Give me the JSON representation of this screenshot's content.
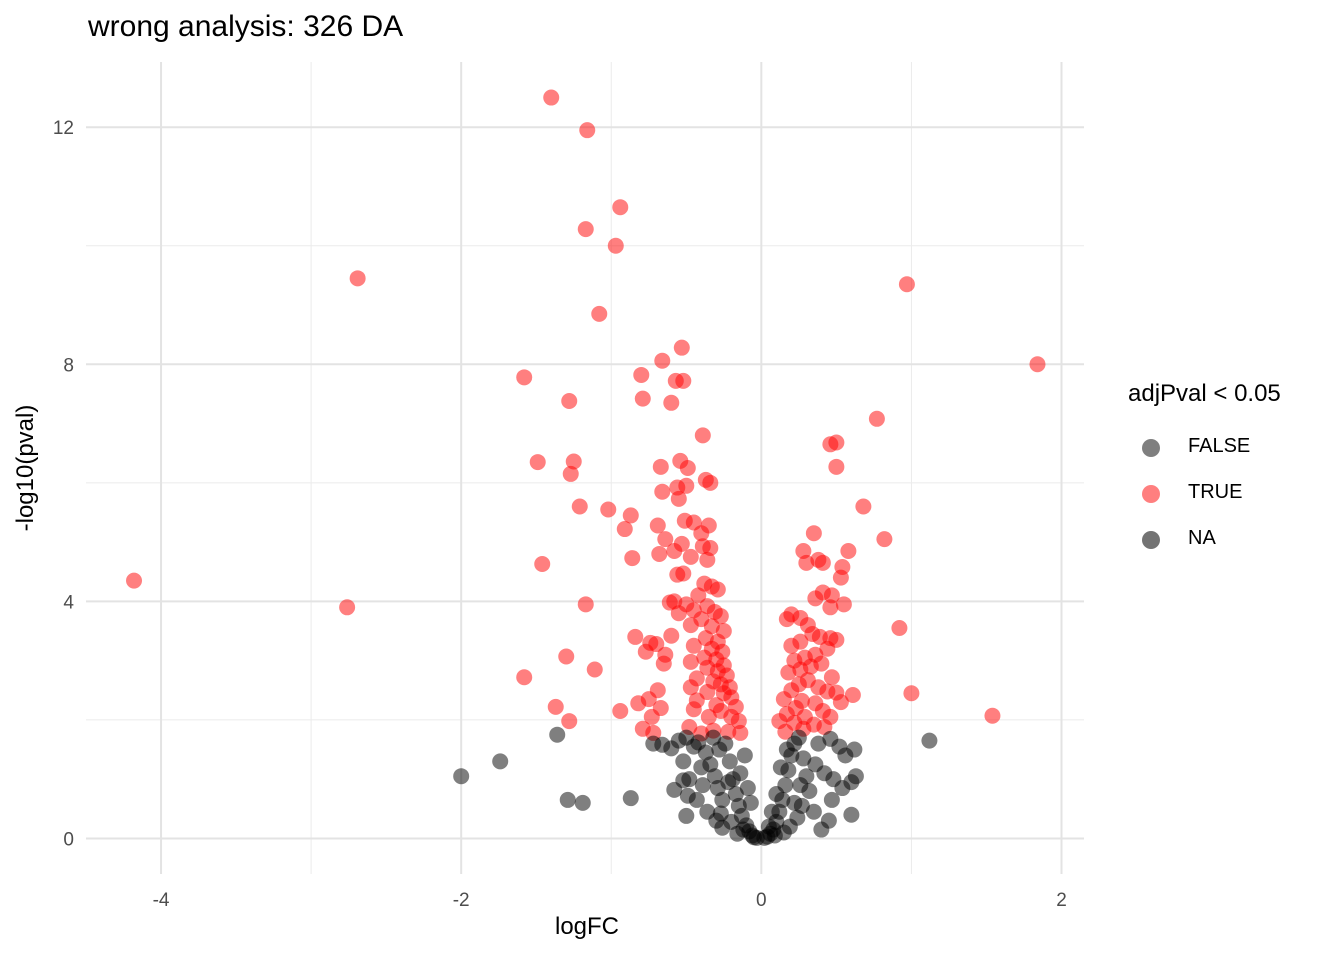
{
  "chart_data": {
    "type": "scatter",
    "title": "wrong analysis: 326 DA",
    "xlabel": "logFC",
    "ylabel": "-log10(pval)",
    "xlim": [
      -4.5,
      2.15
    ],
    "ylim": [
      -0.6,
      13.1
    ],
    "x_ticks": [
      -4,
      -2,
      0,
      2
    ],
    "y_ticks": [
      0,
      4,
      8,
      12
    ],
    "grid": true,
    "legend": {
      "title": "adjPval < 0.05",
      "placement": "right",
      "entries": [
        {
          "label": "FALSE",
          "color": "#000000"
        },
        {
          "label": "TRUE",
          "color": "#ff0000"
        },
        {
          "label": "NA",
          "color": "#000000"
        }
      ]
    },
    "series": [
      {
        "name": "TRUE",
        "color": "#ff0000",
        "points": [
          [
            -1.4,
            12.5
          ],
          [
            -1.16,
            11.95
          ],
          [
            -0.94,
            10.65
          ],
          [
            -1.17,
            10.28
          ],
          [
            -0.97,
            10.0
          ],
          [
            -2.69,
            9.45
          ],
          [
            -1.08,
            8.85
          ],
          [
            -0.53,
            8.28
          ],
          [
            -0.66,
            8.06
          ],
          [
            -1.58,
            7.78
          ],
          [
            -0.8,
            7.82
          ],
          [
            -0.57,
            7.72
          ],
          [
            -0.52,
            7.72
          ],
          [
            -1.28,
            7.38
          ],
          [
            -0.79,
            7.42
          ],
          [
            -0.6,
            7.35
          ],
          [
            -0.39,
            6.8
          ],
          [
            -1.49,
            6.35
          ],
          [
            -1.25,
            6.36
          ],
          [
            -0.54,
            6.37
          ],
          [
            -0.67,
            6.27
          ],
          [
            -0.49,
            6.25
          ],
          [
            -1.27,
            6.15
          ],
          [
            -0.37,
            6.05
          ],
          [
            -0.34,
            6.0
          ],
          [
            -0.56,
            5.92
          ],
          [
            -0.5,
            5.95
          ],
          [
            -0.66,
            5.85
          ],
          [
            -0.55,
            5.73
          ],
          [
            -1.21,
            5.6
          ],
          [
            -1.02,
            5.55
          ],
          [
            -0.87,
            5.45
          ],
          [
            -0.51,
            5.36
          ],
          [
            -0.45,
            5.33
          ],
          [
            -0.35,
            5.28
          ],
          [
            -0.69,
            5.28
          ],
          [
            -0.91,
            5.22
          ],
          [
            -0.4,
            5.15
          ],
          [
            -0.64,
            5.05
          ],
          [
            -0.53,
            4.97
          ],
          [
            -0.39,
            4.93
          ],
          [
            -0.34,
            4.9
          ],
          [
            -0.58,
            4.85
          ],
          [
            -0.68,
            4.8
          ],
          [
            -0.86,
            4.73
          ],
          [
            -0.47,
            4.75
          ],
          [
            -0.36,
            4.7
          ],
          [
            -1.46,
            4.63
          ],
          [
            -0.56,
            4.45
          ],
          [
            -0.52,
            4.47
          ],
          [
            -0.38,
            4.3
          ],
          [
            -0.33,
            4.25
          ],
          [
            -0.29,
            4.2
          ],
          [
            -0.42,
            4.1
          ],
          [
            -0.61,
            3.98
          ],
          [
            -0.58,
            4.0
          ],
          [
            -0.5,
            3.95
          ],
          [
            -0.36,
            3.92
          ],
          [
            -1.17,
            3.95
          ],
          [
            -0.45,
            3.85
          ],
          [
            -0.31,
            3.82
          ],
          [
            -0.27,
            3.75
          ],
          [
            -0.55,
            3.8
          ],
          [
            -0.4,
            3.7
          ],
          [
            -0.47,
            3.6
          ],
          [
            -0.33,
            3.58
          ],
          [
            -0.25,
            3.5
          ],
          [
            -0.6,
            3.42
          ],
          [
            -0.84,
            3.4
          ],
          [
            -0.37,
            3.38
          ],
          [
            -0.29,
            3.32
          ],
          [
            -0.74,
            3.3
          ],
          [
            -0.7,
            3.28
          ],
          [
            -0.45,
            3.25
          ],
          [
            -0.33,
            3.2
          ],
          [
            -0.77,
            3.15
          ],
          [
            -0.26,
            3.15
          ],
          [
            -0.64,
            3.1
          ],
          [
            -1.3,
            3.07
          ],
          [
            -0.38,
            3.05
          ],
          [
            -0.3,
            3.02
          ],
          [
            -0.65,
            2.95
          ],
          [
            -0.47,
            2.98
          ],
          [
            -0.25,
            2.92
          ],
          [
            -0.36,
            2.88
          ],
          [
            -1.11,
            2.85
          ],
          [
            -0.29,
            2.82
          ],
          [
            -0.23,
            2.75
          ],
          [
            -1.58,
            2.72
          ],
          [
            -0.43,
            2.7
          ],
          [
            -0.32,
            2.65
          ],
          [
            -0.27,
            2.6
          ],
          [
            -0.47,
            2.55
          ],
          [
            -0.21,
            2.55
          ],
          [
            -0.69,
            2.5
          ],
          [
            -0.36,
            2.47
          ],
          [
            -0.25,
            2.45
          ],
          [
            -0.2,
            2.38
          ],
          [
            -0.75,
            2.35
          ],
          [
            -0.43,
            2.33
          ],
          [
            -0.82,
            2.28
          ],
          [
            -0.3,
            2.25
          ],
          [
            -1.37,
            2.22
          ],
          [
            -0.17,
            2.22
          ],
          [
            -0.67,
            2.2
          ],
          [
            -0.94,
            2.15
          ],
          [
            -0.45,
            2.18
          ],
          [
            -0.27,
            2.15
          ],
          [
            -0.73,
            2.05
          ],
          [
            -0.35,
            2.05
          ],
          [
            -0.2,
            2.05
          ],
          [
            -1.28,
            1.98
          ],
          [
            -0.15,
            1.98
          ],
          [
            -0.79,
            1.85
          ],
          [
            -0.48,
            1.88
          ],
          [
            -0.32,
            1.82
          ],
          [
            -0.22,
            1.8
          ],
          [
            -0.72,
            1.78
          ],
          [
            -0.14,
            1.78
          ],
          [
            -0.4,
            1.77
          ],
          [
            0.97,
            9.35
          ],
          [
            1.84,
            8.0
          ],
          [
            0.77,
            7.08
          ],
          [
            0.5,
            6.68
          ],
          [
            0.46,
            6.65
          ],
          [
            0.5,
            6.27
          ],
          [
            0.68,
            5.6
          ],
          [
            0.35,
            5.15
          ],
          [
            0.82,
            5.05
          ],
          [
            0.28,
            4.85
          ],
          [
            0.58,
            4.85
          ],
          [
            0.38,
            4.7
          ],
          [
            0.41,
            4.65
          ],
          [
            0.3,
            4.65
          ],
          [
            0.54,
            4.58
          ],
          [
            0.53,
            4.4
          ],
          [
            0.41,
            4.15
          ],
          [
            0.47,
            4.1
          ],
          [
            0.36,
            4.05
          ],
          [
            0.55,
            3.95
          ],
          [
            0.46,
            3.9
          ],
          [
            0.2,
            3.78
          ],
          [
            0.26,
            3.72
          ],
          [
            0.17,
            3.7
          ],
          [
            0.31,
            3.6
          ],
          [
            0.92,
            3.55
          ],
          [
            0.34,
            3.45
          ],
          [
            0.39,
            3.4
          ],
          [
            0.5,
            3.35
          ],
          [
            0.46,
            3.38
          ],
          [
            0.26,
            3.32
          ],
          [
            0.2,
            3.25
          ],
          [
            0.44,
            3.2
          ],
          [
            0.36,
            3.1
          ],
          [
            0.29,
            3.05
          ],
          [
            0.22,
            3.0
          ],
          [
            0.4,
            2.95
          ],
          [
            0.33,
            2.9
          ],
          [
            0.26,
            2.85
          ],
          [
            0.18,
            2.8
          ],
          [
            0.47,
            2.72
          ],
          [
            0.31,
            2.67
          ],
          [
            0.25,
            2.6
          ],
          [
            0.38,
            2.55
          ],
          [
            0.2,
            2.5
          ],
          [
            0.44,
            2.48
          ],
          [
            0.5,
            2.46
          ],
          [
            0.61,
            2.42
          ],
          [
            1.0,
            2.45
          ],
          [
            0.15,
            2.35
          ],
          [
            0.27,
            2.32
          ],
          [
            0.36,
            2.28
          ],
          [
            0.53,
            2.3
          ],
          [
            0.23,
            2.2
          ],
          [
            0.41,
            2.15
          ],
          [
            0.17,
            2.1
          ],
          [
            0.29,
            2.05
          ],
          [
            0.46,
            2.05
          ],
          [
            1.54,
            2.07
          ],
          [
            0.12,
            1.98
          ],
          [
            0.22,
            1.95
          ],
          [
            0.35,
            1.92
          ],
          [
            0.42,
            1.88
          ],
          [
            0.28,
            1.85
          ],
          [
            0.16,
            1.8
          ],
          [
            -4.18,
            4.35
          ],
          [
            -2.76,
            3.9
          ]
        ]
      },
      {
        "name": "FALSE",
        "color": "#000000",
        "points": [
          [
            -2.0,
            1.05
          ],
          [
            -1.74,
            1.3
          ],
          [
            -1.36,
            1.75
          ],
          [
            -1.29,
            0.65
          ],
          [
            -1.19,
            0.6
          ],
          [
            -0.87,
            0.68
          ],
          [
            -0.72,
            1.6
          ],
          [
            -0.66,
            1.58
          ],
          [
            -0.6,
            1.52
          ],
          [
            -0.55,
            1.65
          ],
          [
            -0.5,
            1.7
          ],
          [
            -0.45,
            1.55
          ],
          [
            -0.52,
            1.3
          ],
          [
            -0.48,
            1.0
          ],
          [
            -0.52,
            0.98
          ],
          [
            -0.58,
            0.82
          ],
          [
            -0.49,
            0.72
          ],
          [
            -0.5,
            0.38
          ],
          [
            -0.42,
            1.62
          ],
          [
            -0.37,
            1.45
          ],
          [
            -0.34,
            1.25
          ],
          [
            -0.31,
            1.05
          ],
          [
            -0.29,
            0.85
          ],
          [
            -0.26,
            0.65
          ],
          [
            -0.36,
            0.45
          ],
          [
            -0.3,
            0.3
          ],
          [
            -0.24,
            1.6
          ],
          [
            -0.21,
            1.3
          ],
          [
            -0.19,
            1.0
          ],
          [
            -0.17,
            0.75
          ],
          [
            -0.15,
            0.55
          ],
          [
            -0.13,
            0.38
          ],
          [
            -0.1,
            0.22
          ],
          [
            -0.08,
            0.12
          ],
          [
            -0.06,
            0.05
          ],
          [
            -0.05,
            0.02
          ],
          [
            -0.03,
            0.01
          ],
          [
            -0.11,
            1.4
          ],
          [
            -0.14,
            1.1
          ],
          [
            -0.09,
            0.85
          ],
          [
            -0.07,
            0.6
          ],
          [
            -0.2,
            0.28
          ],
          [
            -0.26,
            0.18
          ],
          [
            -0.16,
            0.08
          ],
          [
            -0.32,
            1.7
          ],
          [
            -0.28,
            1.5
          ],
          [
            -0.22,
            0.95
          ],
          [
            -0.12,
            0.15
          ],
          [
            -0.39,
            0.9
          ],
          [
            -0.43,
            0.65
          ],
          [
            -0.4,
            1.2
          ],
          [
            -0.27,
            0.42
          ],
          [
            0.02,
            0.01
          ],
          [
            0.04,
            0.03
          ],
          [
            0.06,
            0.08
          ],
          [
            0.08,
            0.15
          ],
          [
            0.1,
            0.28
          ],
          [
            0.12,
            0.45
          ],
          [
            0.14,
            0.65
          ],
          [
            0.16,
            0.9
          ],
          [
            0.18,
            1.15
          ],
          [
            0.2,
            1.4
          ],
          [
            0.22,
            1.6
          ],
          [
            0.1,
            0.75
          ],
          [
            0.07,
            0.45
          ],
          [
            0.13,
            1.2
          ],
          [
            0.17,
            1.5
          ],
          [
            0.25,
            1.7
          ],
          [
            0.28,
            1.35
          ],
          [
            0.3,
            1.05
          ],
          [
            0.32,
            0.8
          ],
          [
            0.27,
            0.55
          ],
          [
            0.24,
            0.35
          ],
          [
            0.19,
            0.2
          ],
          [
            0.15,
            0.1
          ],
          [
            0.35,
            0.45
          ],
          [
            0.38,
            1.6
          ],
          [
            0.42,
            1.1
          ],
          [
            0.47,
            0.65
          ],
          [
            0.45,
            0.3
          ],
          [
            0.48,
            1.0
          ],
          [
            0.54,
            0.85
          ],
          [
            0.4,
            0.15
          ],
          [
            0.36,
            1.25
          ],
          [
            0.52,
            1.55
          ],
          [
            0.62,
            1.5
          ],
          [
            0.63,
            1.05
          ],
          [
            0.6,
            0.95
          ],
          [
            0.46,
            1.68
          ],
          [
            0.56,
            1.4
          ],
          [
            0.6,
            0.4
          ],
          [
            0.26,
            0.9
          ],
          [
            0.22,
            0.6
          ],
          [
            1.12,
            1.65
          ],
          [
            0.05,
            0.2
          ],
          [
            0.09,
            0.05
          ]
        ]
      }
    ]
  }
}
